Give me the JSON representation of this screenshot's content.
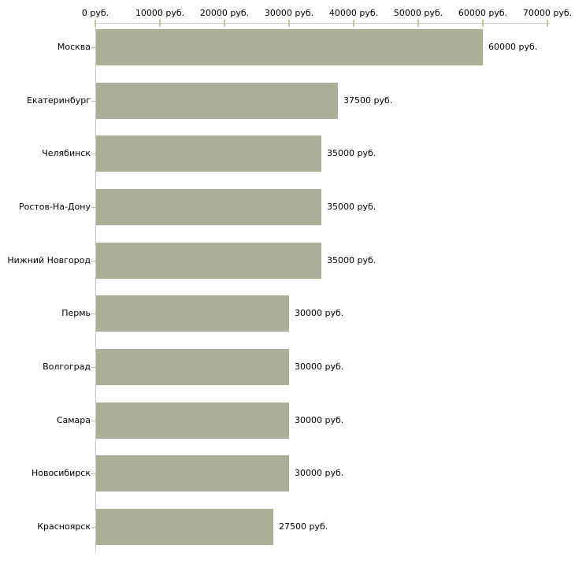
{
  "chart_data": {
    "type": "bar",
    "orientation": "horizontal",
    "title": "",
    "xlabel": "",
    "ylabel": "",
    "grid": false,
    "legend": false,
    "categories": [
      "Москва",
      "Екатеринбург",
      "Челябинск",
      "Ростов-На-Дону",
      "Нижний Новгород",
      "Пермь",
      "Волгоград",
      "Самара",
      "Новосибирск",
      "Красноярск"
    ],
    "values": [
      60000,
      37500,
      35000,
      35000,
      35000,
      30000,
      30000,
      30000,
      30000,
      27500
    ],
    "value_labels": [
      "60000 руб.",
      "37500 руб.",
      "35000 руб.",
      "35000 руб.",
      "35000 руб.",
      "30000 руб.",
      "30000 руб.",
      "30000 руб.",
      "30000 руб.",
      "27500 руб."
    ],
    "xlim": [
      0,
      70000
    ],
    "x_tick_values": [
      0,
      10000,
      20000,
      30000,
      40000,
      50000,
      60000,
      70000
    ],
    "x_tick_labels": [
      "0 руб.",
      "10000 руб.",
      "20000 руб.",
      "30000 руб.",
      "40000 руб.",
      "50000 руб.",
      "60000 руб.",
      "70000 руб."
    ],
    "colors": {
      "bar": "#aab097",
      "axis_line": "#c9c9c9",
      "x_tick": "#c5c5a1",
      "y_tick": "#bcbc9a",
      "text": "#000000",
      "background": "#ffffff"
    }
  }
}
